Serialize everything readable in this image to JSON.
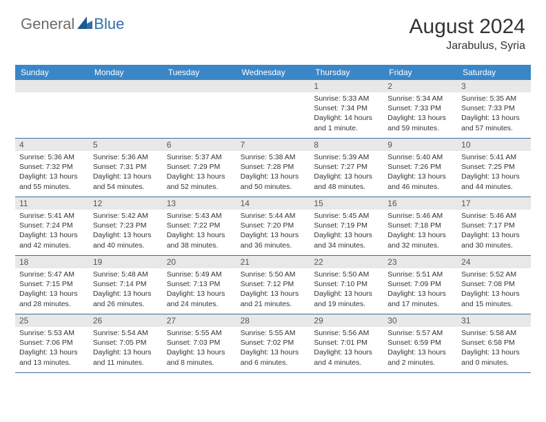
{
  "logo": {
    "general": "General",
    "blue": "Blue"
  },
  "title": "August 2024",
  "location": "Jarabulus, Syria",
  "colors": {
    "header_bg": "#3b86c6",
    "header_text": "#ffffff",
    "date_bar_bg": "#e8e8e8",
    "date_bar_text": "#555555",
    "cell_border": "#3b6a98",
    "body_text": "#333333",
    "logo_general": "#6b6b6b",
    "logo_blue": "#2f6fa8"
  },
  "day_names": [
    "Sunday",
    "Monday",
    "Tuesday",
    "Wednesday",
    "Thursday",
    "Friday",
    "Saturday"
  ],
  "weeks": [
    [
      {
        "date": "",
        "sunrise": "",
        "sunset": "",
        "daylight": ""
      },
      {
        "date": "",
        "sunrise": "",
        "sunset": "",
        "daylight": ""
      },
      {
        "date": "",
        "sunrise": "",
        "sunset": "",
        "daylight": ""
      },
      {
        "date": "",
        "sunrise": "",
        "sunset": "",
        "daylight": ""
      },
      {
        "date": "1",
        "sunrise": "Sunrise: 5:33 AM",
        "sunset": "Sunset: 7:34 PM",
        "daylight": "Daylight: 14 hours and 1 minute."
      },
      {
        "date": "2",
        "sunrise": "Sunrise: 5:34 AM",
        "sunset": "Sunset: 7:33 PM",
        "daylight": "Daylight: 13 hours and 59 minutes."
      },
      {
        "date": "3",
        "sunrise": "Sunrise: 5:35 AM",
        "sunset": "Sunset: 7:33 PM",
        "daylight": "Daylight: 13 hours and 57 minutes."
      }
    ],
    [
      {
        "date": "4",
        "sunrise": "Sunrise: 5:36 AM",
        "sunset": "Sunset: 7:32 PM",
        "daylight": "Daylight: 13 hours and 55 minutes."
      },
      {
        "date": "5",
        "sunrise": "Sunrise: 5:36 AM",
        "sunset": "Sunset: 7:31 PM",
        "daylight": "Daylight: 13 hours and 54 minutes."
      },
      {
        "date": "6",
        "sunrise": "Sunrise: 5:37 AM",
        "sunset": "Sunset: 7:29 PM",
        "daylight": "Daylight: 13 hours and 52 minutes."
      },
      {
        "date": "7",
        "sunrise": "Sunrise: 5:38 AM",
        "sunset": "Sunset: 7:28 PM",
        "daylight": "Daylight: 13 hours and 50 minutes."
      },
      {
        "date": "8",
        "sunrise": "Sunrise: 5:39 AM",
        "sunset": "Sunset: 7:27 PM",
        "daylight": "Daylight: 13 hours and 48 minutes."
      },
      {
        "date": "9",
        "sunrise": "Sunrise: 5:40 AM",
        "sunset": "Sunset: 7:26 PM",
        "daylight": "Daylight: 13 hours and 46 minutes."
      },
      {
        "date": "10",
        "sunrise": "Sunrise: 5:41 AM",
        "sunset": "Sunset: 7:25 PM",
        "daylight": "Daylight: 13 hours and 44 minutes."
      }
    ],
    [
      {
        "date": "11",
        "sunrise": "Sunrise: 5:41 AM",
        "sunset": "Sunset: 7:24 PM",
        "daylight": "Daylight: 13 hours and 42 minutes."
      },
      {
        "date": "12",
        "sunrise": "Sunrise: 5:42 AM",
        "sunset": "Sunset: 7:23 PM",
        "daylight": "Daylight: 13 hours and 40 minutes."
      },
      {
        "date": "13",
        "sunrise": "Sunrise: 5:43 AM",
        "sunset": "Sunset: 7:22 PM",
        "daylight": "Daylight: 13 hours and 38 minutes."
      },
      {
        "date": "14",
        "sunrise": "Sunrise: 5:44 AM",
        "sunset": "Sunset: 7:20 PM",
        "daylight": "Daylight: 13 hours and 36 minutes."
      },
      {
        "date": "15",
        "sunrise": "Sunrise: 5:45 AM",
        "sunset": "Sunset: 7:19 PM",
        "daylight": "Daylight: 13 hours and 34 minutes."
      },
      {
        "date": "16",
        "sunrise": "Sunrise: 5:46 AM",
        "sunset": "Sunset: 7:18 PM",
        "daylight": "Daylight: 13 hours and 32 minutes."
      },
      {
        "date": "17",
        "sunrise": "Sunrise: 5:46 AM",
        "sunset": "Sunset: 7:17 PM",
        "daylight": "Daylight: 13 hours and 30 minutes."
      }
    ],
    [
      {
        "date": "18",
        "sunrise": "Sunrise: 5:47 AM",
        "sunset": "Sunset: 7:15 PM",
        "daylight": "Daylight: 13 hours and 28 minutes."
      },
      {
        "date": "19",
        "sunrise": "Sunrise: 5:48 AM",
        "sunset": "Sunset: 7:14 PM",
        "daylight": "Daylight: 13 hours and 26 minutes."
      },
      {
        "date": "20",
        "sunrise": "Sunrise: 5:49 AM",
        "sunset": "Sunset: 7:13 PM",
        "daylight": "Daylight: 13 hours and 24 minutes."
      },
      {
        "date": "21",
        "sunrise": "Sunrise: 5:50 AM",
        "sunset": "Sunset: 7:12 PM",
        "daylight": "Daylight: 13 hours and 21 minutes."
      },
      {
        "date": "22",
        "sunrise": "Sunrise: 5:50 AM",
        "sunset": "Sunset: 7:10 PM",
        "daylight": "Daylight: 13 hours and 19 minutes."
      },
      {
        "date": "23",
        "sunrise": "Sunrise: 5:51 AM",
        "sunset": "Sunset: 7:09 PM",
        "daylight": "Daylight: 13 hours and 17 minutes."
      },
      {
        "date": "24",
        "sunrise": "Sunrise: 5:52 AM",
        "sunset": "Sunset: 7:08 PM",
        "daylight": "Daylight: 13 hours and 15 minutes."
      }
    ],
    [
      {
        "date": "25",
        "sunrise": "Sunrise: 5:53 AM",
        "sunset": "Sunset: 7:06 PM",
        "daylight": "Daylight: 13 hours and 13 minutes."
      },
      {
        "date": "26",
        "sunrise": "Sunrise: 5:54 AM",
        "sunset": "Sunset: 7:05 PM",
        "daylight": "Daylight: 13 hours and 11 minutes."
      },
      {
        "date": "27",
        "sunrise": "Sunrise: 5:55 AM",
        "sunset": "Sunset: 7:03 PM",
        "daylight": "Daylight: 13 hours and 8 minutes."
      },
      {
        "date": "28",
        "sunrise": "Sunrise: 5:55 AM",
        "sunset": "Sunset: 7:02 PM",
        "daylight": "Daylight: 13 hours and 6 minutes."
      },
      {
        "date": "29",
        "sunrise": "Sunrise: 5:56 AM",
        "sunset": "Sunset: 7:01 PM",
        "daylight": "Daylight: 13 hours and 4 minutes."
      },
      {
        "date": "30",
        "sunrise": "Sunrise: 5:57 AM",
        "sunset": "Sunset: 6:59 PM",
        "daylight": "Daylight: 13 hours and 2 minutes."
      },
      {
        "date": "31",
        "sunrise": "Sunrise: 5:58 AM",
        "sunset": "Sunset: 6:58 PM",
        "daylight": "Daylight: 13 hours and 0 minutes."
      }
    ]
  ]
}
